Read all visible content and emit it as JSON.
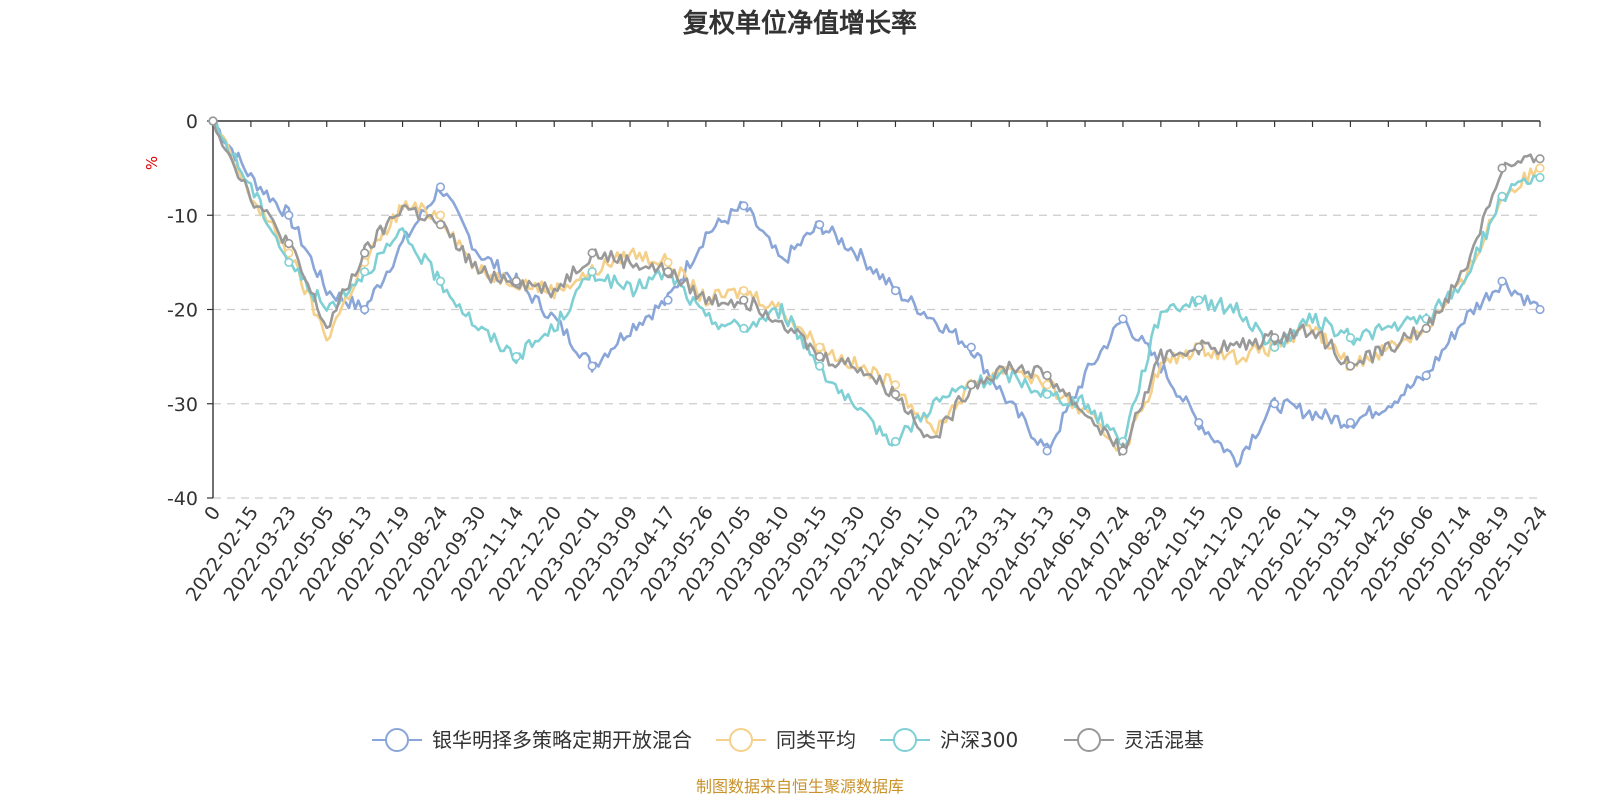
{
  "chart_data": {
    "type": "line",
    "title": "复权单位净值增长率",
    "ylabel": "%",
    "ylim": [
      -40,
      0
    ],
    "yticks": [
      0,
      -10,
      -20,
      -30,
      -40
    ],
    "grid": true,
    "legend_position": "bottom",
    "x_first_label": "0",
    "x_labels": [
      "2022-02-15",
      "2022-03-23",
      "2022-05-05",
      "2022-06-13",
      "2022-07-19",
      "2022-08-24",
      "2022-09-30",
      "2022-11-14",
      "2022-12-20",
      "2023-02-01",
      "2023-03-09",
      "2023-04-17",
      "2023-05-26",
      "2023-07-05",
      "2023-08-10",
      "2023-09-15",
      "2023-10-30",
      "2023-12-05",
      "2024-01-10",
      "2024-02-23",
      "2024-03-31",
      "2024-05-13",
      "2024-06-19",
      "2024-07-24",
      "2024-08-29",
      "2024-10-15",
      "2024-11-20",
      "2024-12-26",
      "2025-02-11",
      "2025-03-19",
      "2025-04-25",
      "2025-06-06",
      "2025-07-14",
      "2025-08-19",
      "2025-10-24"
    ],
    "series": [
      {
        "name": "银华明择多策略定期开放混合",
        "color": "#8aa6d8",
        "values": [
          0,
          -6,
          -10,
          -18,
          -20,
          -13,
          -7,
          -14,
          -17,
          -21,
          -26,
          -22,
          -19,
          -12,
          -9,
          -15,
          -11,
          -14,
          -18,
          -21,
          -24,
          -30,
          -35,
          -27,
          -21,
          -26,
          -32,
          -36,
          -30,
          -31,
          -32,
          -30,
          -27,
          -21,
          -17,
          -20
        ]
      },
      {
        "name": "同类平均",
        "color": "#f5d08a",
        "values": [
          0,
          -8,
          -14,
          -23,
          -15,
          -9,
          -10,
          -16,
          -17,
          -18,
          -16,
          -14,
          -15,
          -19,
          -18,
          -20,
          -24,
          -26,
          -28,
          -33,
          -28,
          -26,
          -28,
          -31,
          -35,
          -26,
          -24,
          -25,
          -24,
          -22,
          -26,
          -24,
          -22,
          -17,
          -8,
          -5
        ]
      },
      {
        "name": "沪深300",
        "color": "#7fd0d4",
        "values": [
          0,
          -7,
          -15,
          -20,
          -16,
          -12,
          -17,
          -22,
          -25,
          -22,
          -16,
          -18,
          -16,
          -21,
          -22,
          -20,
          -26,
          -31,
          -34,
          -30,
          -28,
          -27,
          -29,
          -30,
          -34,
          -20,
          -19,
          -20,
          -24,
          -21,
          -23,
          -22,
          -21,
          -17,
          -8,
          -6
        ]
      },
      {
        "name": "灵活混基",
        "color": "#999999",
        "values": [
          0,
          -8,
          -13,
          -22,
          -14,
          -9,
          -11,
          -16,
          -17,
          -18,
          -14,
          -15,
          -16,
          -19,
          -19,
          -21,
          -25,
          -26,
          -29,
          -34,
          -28,
          -26,
          -27,
          -31,
          -35,
          -25,
          -24,
          -24,
          -23,
          -22,
          -26,
          -24,
          -22,
          -16,
          -5,
          -4
        ]
      }
    ]
  },
  "source_note": "制图数据来自恒生聚源数据库"
}
